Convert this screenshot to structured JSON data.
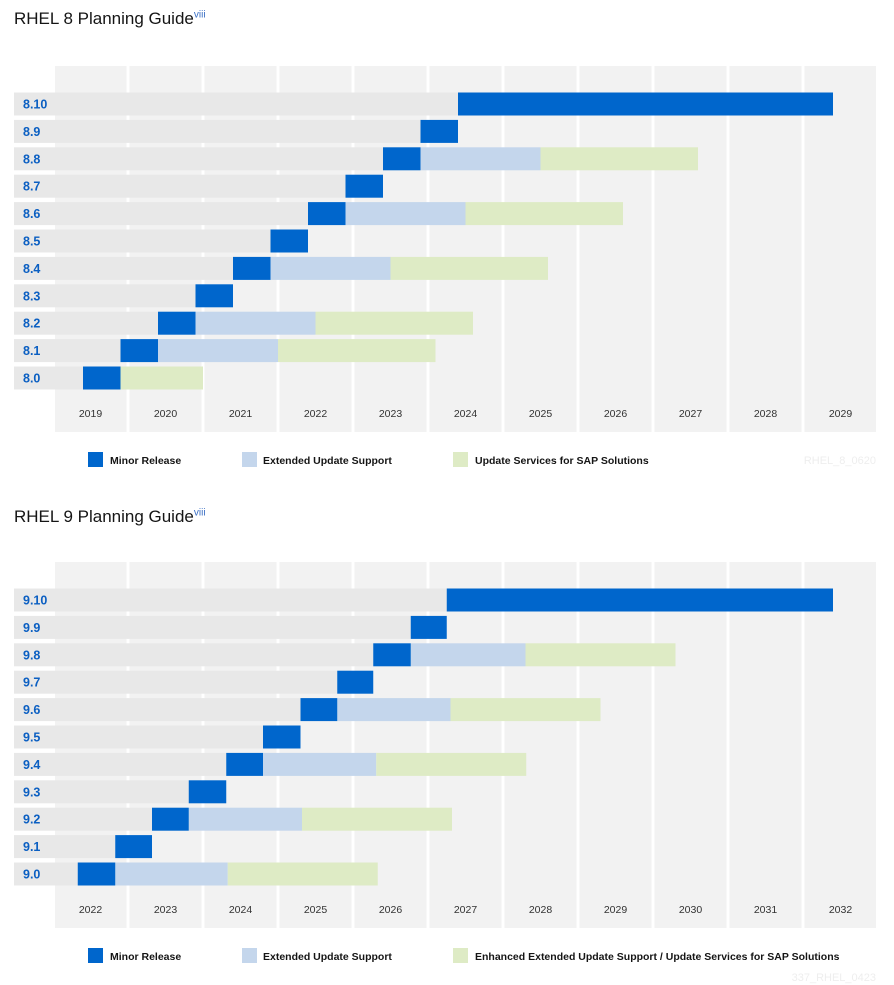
{
  "colors": {
    "minor_release": "#0066cc",
    "extended_update_support": "#c4d6ec",
    "sap": "#deebc5",
    "plot_background": "#f2f2f2",
    "row_band": "#e8e8e8",
    "row_label": "#0b5fc2"
  },
  "chart_data": [
    {
      "type": "bar",
      "title": "RHEL 8 Planning Guide",
      "title_superscript": "viii",
      "orientation": "horizontal-gantt",
      "xlim": [
        2019,
        2030
      ],
      "x_ticks": [
        "2019",
        "2020",
        "2021",
        "2022",
        "2023",
        "2024",
        "2025",
        "2026",
        "2027",
        "2028",
        "2029"
      ],
      "grid": true,
      "legend": {
        "placement": "bottom",
        "entries": [
          "Minor Release",
          "Extended Update Support",
          "Update Services for SAP Solutions"
        ]
      },
      "watermark": "RHEL_8_0620",
      "rows": [
        {
          "label": "8.10",
          "minor": [
            2024.4,
            2029.4
          ]
        },
        {
          "label": "8.9",
          "minor": [
            2023.9,
            2024.4
          ]
        },
        {
          "label": "8.8",
          "minor": [
            2023.4,
            2023.9
          ],
          "eus_end": 2025.5,
          "sap_end": 2027.6
        },
        {
          "label": "8.7",
          "minor": [
            2022.9,
            2023.4
          ]
        },
        {
          "label": "8.6",
          "minor": [
            2022.4,
            2022.9
          ],
          "eus_end": 2024.5,
          "sap_end": 2026.6
        },
        {
          "label": "8.5",
          "minor": [
            2021.9,
            2022.4
          ]
        },
        {
          "label": "8.4",
          "minor": [
            2021.4,
            2021.9
          ],
          "eus_end": 2023.5,
          "sap_end": 2025.6
        },
        {
          "label": "8.3",
          "minor": [
            2020.9,
            2021.4
          ]
        },
        {
          "label": "8.2",
          "minor": [
            2020.4,
            2020.9
          ],
          "eus_end": 2022.5,
          "sap_end": 2024.6
        },
        {
          "label": "8.1",
          "minor": [
            2019.9,
            2020.4
          ],
          "eus_end": 2022.0,
          "sap_end": 2024.1
        },
        {
          "label": "8.0",
          "minor": [
            2019.4,
            2019.9
          ],
          "sap_end": 2021.0
        }
      ]
    },
    {
      "type": "bar",
      "title": "RHEL 9 Planning Guide",
      "title_superscript": "viii",
      "orientation": "horizontal-gantt",
      "xlim": [
        2022,
        2033
      ],
      "x_ticks": [
        "2022",
        "2023",
        "2024",
        "2025",
        "2026",
        "2027",
        "2028",
        "2029",
        "2030",
        "2031",
        "2032"
      ],
      "grid": true,
      "legend": {
        "placement": "bottom",
        "entries": [
          "Minor Release",
          "Extended Update Support",
          "Enhanced Extended Update Support / Update Services for SAP Solutions"
        ]
      },
      "watermark": "337_RHEL_0423",
      "rows": [
        {
          "label": "9.10",
          "minor": [
            2027.25,
            2032.4
          ]
        },
        {
          "label": "9.9",
          "minor": [
            2026.77,
            2027.25
          ]
        },
        {
          "label": "9.8",
          "minor": [
            2026.27,
            2026.77
          ],
          "eus_end": 2028.3,
          "sap_end": 2030.3
        },
        {
          "label": "9.7",
          "minor": [
            2025.79,
            2026.27
          ]
        },
        {
          "label": "9.6",
          "minor": [
            2025.3,
            2025.79
          ],
          "eus_end": 2027.3,
          "sap_end": 2029.3
        },
        {
          "label": "9.5",
          "minor": [
            2024.8,
            2025.3
          ]
        },
        {
          "label": "9.4",
          "minor": [
            2024.31,
            2024.8
          ],
          "eus_end": 2026.31,
          "sap_end": 2028.31
        },
        {
          "label": "9.3",
          "minor": [
            2023.81,
            2024.31
          ]
        },
        {
          "label": "9.2",
          "minor": [
            2023.32,
            2023.81
          ],
          "eus_end": 2025.32,
          "sap_end": 2027.32
        },
        {
          "label": "9.1",
          "minor": [
            2022.83,
            2023.32
          ]
        },
        {
          "label": "9.0",
          "minor": [
            2022.33,
            2022.83
          ],
          "eus_end": 2024.33,
          "sap_end": 2026.33
        }
      ]
    }
  ]
}
